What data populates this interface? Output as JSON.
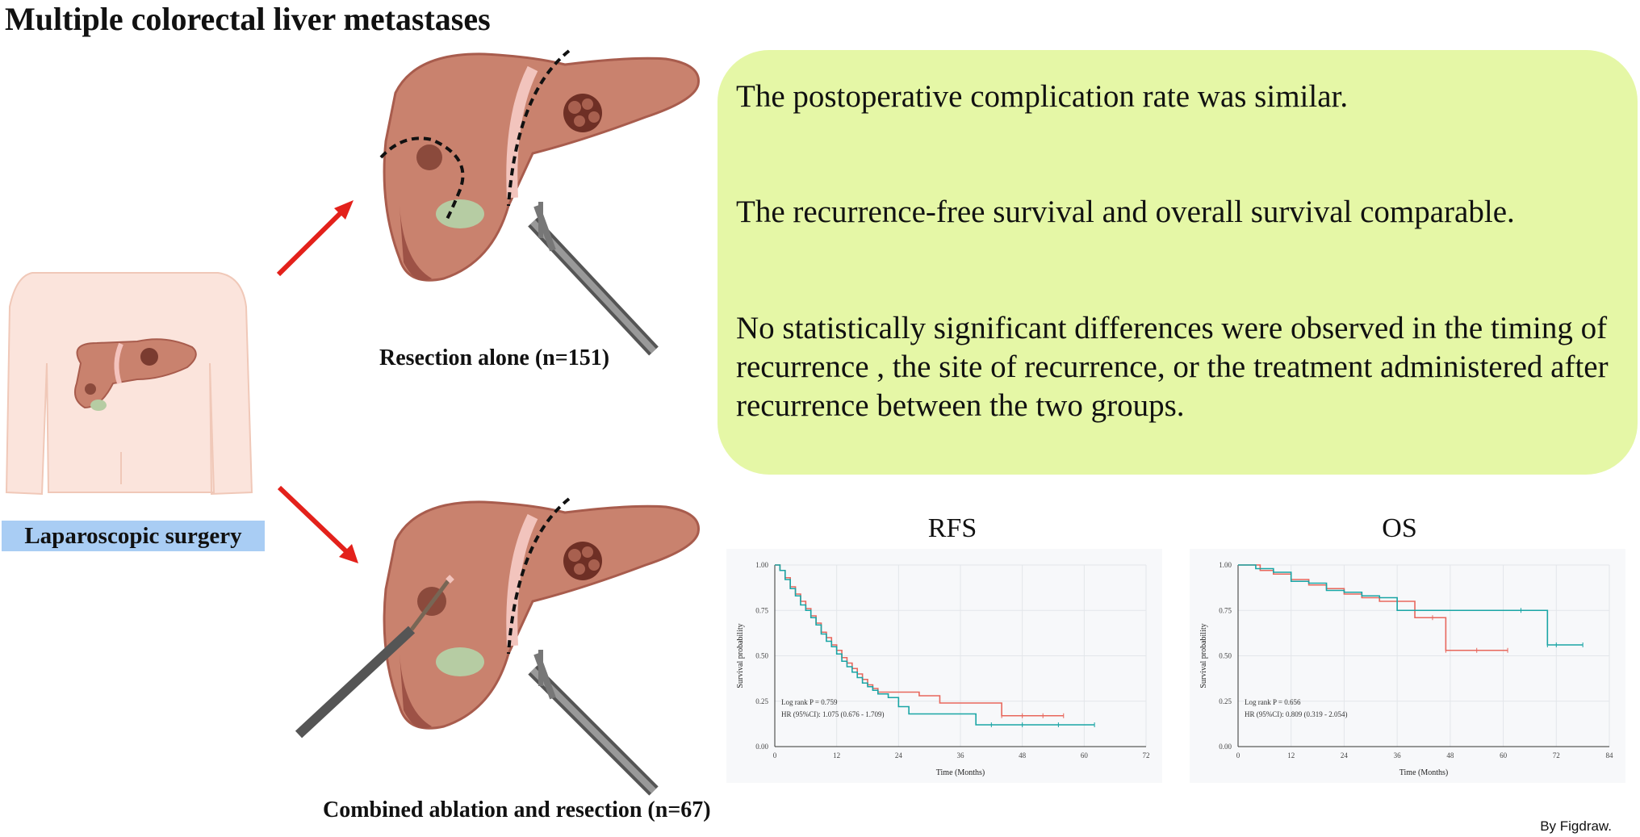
{
  "title": "Multiple colorectal liver metastases",
  "left_label": "Laparoscopic surgery",
  "caption_resection": "Resection alone (n=151)",
  "caption_combined": "Combined ablation and resection (n=67)",
  "findings": [
    "The postoperative complication rate was similar.",
    "The recurrence-free survival and overall survival comparable.",
    "No statistically significant differences were observed in the timing of recurrence , the site of recurrence, or the treatment administered after recurrence between the two groups."
  ],
  "footer": "By Figdraw.",
  "colors": {
    "arrow": "#e3211b",
    "findings_bg": "#e5f7a6",
    "label_bg": "#a9cdf4",
    "series_red": "#e8675c",
    "series_teal": "#1aa5a5",
    "liver": "#c9826e",
    "liver_dark": "#a85c4d",
    "gallbladder": "#b6cca3"
  },
  "chart_data": [
    {
      "type": "line",
      "title": "RFS",
      "xlabel": "Time (Months)",
      "ylabel": "Survival probability",
      "xlim": [
        0,
        72
      ],
      "ylim": [
        0,
        1
      ],
      "xticks": [
        "0",
        "12",
        "24",
        "36",
        "48",
        "60",
        "72"
      ],
      "yticks": [
        "0.00",
        "0.25",
        "0.50",
        "0.75",
        "1.00"
      ],
      "grid": true,
      "annotations": [
        "Log rank P = 0.759",
        "HR (95%CI): 1.075 (0.676 - 1.709)"
      ],
      "series": [
        {
          "color": "#e8675c",
          "x": [
            0,
            1,
            2,
            3,
            4,
            5,
            6,
            7,
            8,
            9,
            10,
            11,
            12,
            13,
            14,
            15,
            16,
            17,
            18,
            19,
            20,
            22,
            24,
            28,
            32,
            36,
            40,
            44,
            48,
            52,
            56
          ],
          "y": [
            1.0,
            0.97,
            0.93,
            0.88,
            0.84,
            0.8,
            0.76,
            0.72,
            0.68,
            0.63,
            0.6,
            0.56,
            0.53,
            0.49,
            0.46,
            0.43,
            0.4,
            0.37,
            0.34,
            0.32,
            0.3,
            0.3,
            0.3,
            0.28,
            0.24,
            0.24,
            0.24,
            0.17,
            0.17,
            0.17,
            0.17
          ]
        },
        {
          "color": "#1aa5a5",
          "x": [
            0,
            1,
            2,
            3,
            4,
            5,
            6,
            7,
            8,
            9,
            10,
            11,
            12,
            13,
            14,
            15,
            16,
            17,
            18,
            19,
            20,
            22,
            24,
            26,
            30,
            36,
            39,
            42,
            48,
            55,
            62
          ],
          "y": [
            1.0,
            0.97,
            0.92,
            0.87,
            0.83,
            0.78,
            0.75,
            0.71,
            0.67,
            0.62,
            0.58,
            0.55,
            0.51,
            0.47,
            0.44,
            0.41,
            0.38,
            0.35,
            0.33,
            0.31,
            0.29,
            0.27,
            0.22,
            0.18,
            0.18,
            0.18,
            0.12,
            0.12,
            0.12,
            0.12,
            0.12
          ]
        }
      ]
    },
    {
      "type": "line",
      "title": "OS",
      "xlabel": "Time (Months)",
      "ylabel": "Survival probability",
      "xlim": [
        0,
        84
      ],
      "ylim": [
        0,
        1
      ],
      "xticks": [
        "0",
        "12",
        "24",
        "36",
        "48",
        "60",
        "72",
        "84"
      ],
      "yticks": [
        "0.00",
        "0.25",
        "0.50",
        "0.75",
        "1.00"
      ],
      "grid": true,
      "annotations": [
        "Log rank P = 0.656",
        "HR (95%CI): 0.809 (0.319 - 2.054)"
      ],
      "series": [
        {
          "color": "#e8675c",
          "x": [
            0,
            5,
            8,
            12,
            16,
            20,
            24,
            28,
            32,
            36,
            40,
            44,
            47,
            54,
            61
          ],
          "y": [
            1.0,
            0.97,
            0.95,
            0.92,
            0.89,
            0.87,
            0.84,
            0.82,
            0.8,
            0.8,
            0.71,
            0.71,
            0.53,
            0.53,
            0.53
          ]
        },
        {
          "color": "#1aa5a5",
          "x": [
            0,
            4,
            8,
            12,
            16,
            20,
            24,
            28,
            32,
            36,
            40,
            48,
            56,
            64,
            70,
            72,
            78
          ],
          "y": [
            1.0,
            0.98,
            0.96,
            0.91,
            0.9,
            0.86,
            0.85,
            0.83,
            0.82,
            0.75,
            0.75,
            0.75,
            0.75,
            0.75,
            0.56,
            0.56,
            0.56
          ]
        }
      ]
    }
  ]
}
